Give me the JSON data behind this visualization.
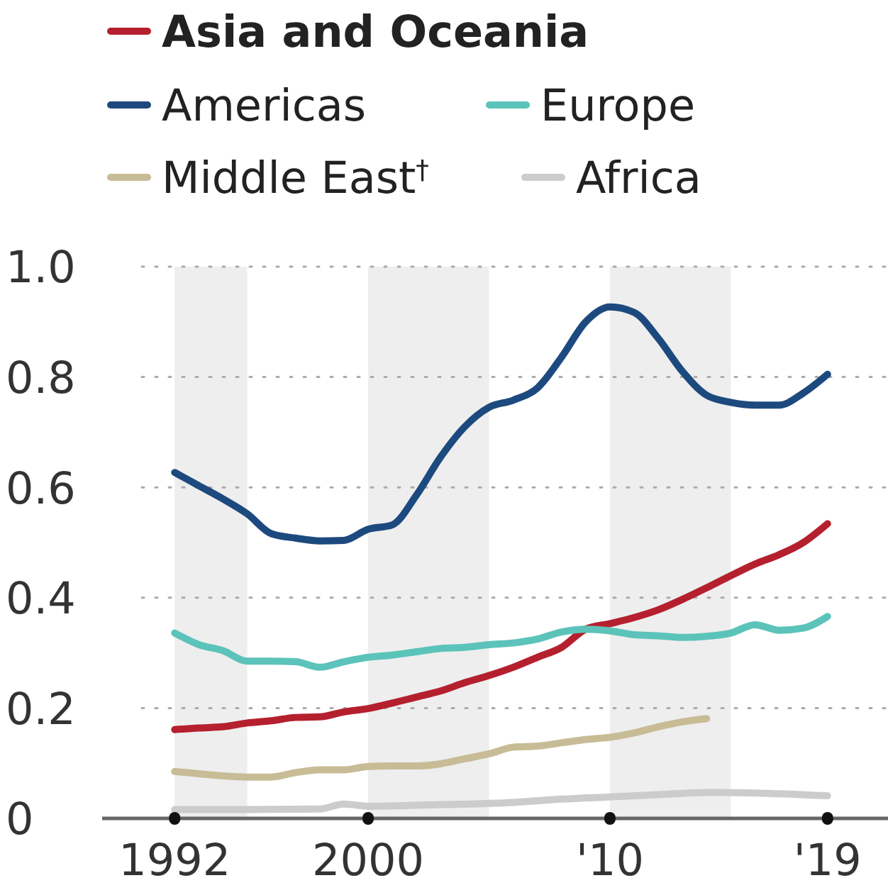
{
  "chart_data": {
    "type": "line",
    "legend": "top left",
    "grid": "y",
    "marker": "none",
    "line_style": "solid",
    "x": [
      1992,
      1993,
      1994,
      1995,
      1996,
      1997,
      1998,
      1999,
      2000,
      2001,
      2002,
      2003,
      2004,
      2005,
      2006,
      2007,
      2008,
      2009,
      2010,
      2011,
      2012,
      2013,
      2014,
      2015,
      2016,
      2017,
      2018,
      2019
    ],
    "series": [
      {
        "name": "Asia and Oceania",
        "color": "#b5202e",
        "values": [
          0.161,
          0.164,
          0.166,
          0.173,
          0.177,
          0.183,
          0.184,
          0.193,
          0.199,
          0.209,
          0.22,
          0.231,
          0.246,
          0.259,
          0.274,
          0.292,
          0.31,
          0.343,
          0.353,
          0.364,
          0.378,
          0.397,
          0.418,
          0.44,
          0.461,
          0.478,
          0.5,
          0.534
        ]
      },
      {
        "name": "Americas",
        "color": "#1d4a7e",
        "values": [
          0.627,
          0.603,
          0.579,
          0.552,
          0.516,
          0.508,
          0.503,
          0.504,
          0.524,
          0.532,
          0.586,
          0.655,
          0.71,
          0.745,
          0.758,
          0.78,
          0.836,
          0.9,
          0.927,
          0.917,
          0.87,
          0.81,
          0.767,
          0.754,
          0.749,
          0.749,
          0.771,
          0.805
        ]
      },
      {
        "name": "Europe",
        "color": "#5cc3ba",
        "values": [
          0.336,
          0.315,
          0.304,
          0.285,
          0.285,
          0.284,
          0.274,
          0.284,
          0.292,
          0.296,
          0.302,
          0.308,
          0.31,
          0.315,
          0.318,
          0.325,
          0.338,
          0.343,
          0.34,
          0.333,
          0.331,
          0.328,
          0.33,
          0.336,
          0.351,
          0.341,
          0.345,
          0.366
        ]
      },
      {
        "name": "Middle East$^{†}$",
        "color": "#c8bc96",
        "values": [
          0.085,
          0.081,
          0.077,
          0.075,
          0.075,
          0.083,
          0.088,
          0.088,
          0.094,
          0.095,
          0.095,
          0.099,
          0.108,
          0.117,
          0.129,
          0.131,
          0.137,
          0.143,
          0.147,
          0.155,
          0.166,
          0.175,
          0.181,
          null,
          null,
          null,
          null,
          null
        ]
      },
      {
        "name": "Africa",
        "color": "#cccccc",
        "x": [
          1992,
          1995,
          1998,
          1999,
          2000,
          2003,
          2006,
          2008,
          2010,
          2012,
          2014,
          2016,
          2019
        ],
        "values": [
          0.016,
          0.016,
          0.017,
          0.026,
          0.022,
          0.025,
          0.029,
          0.035,
          0.039,
          0.043,
          0.047,
          0.046,
          0.041
        ]
      }
    ],
    "xlim": [
      1989,
      2021.5
    ],
    "xticks": [
      1992,
      2000,
      {
        "value": 2010,
        "label": "'10"
      },
      {
        "value": 2019,
        "label": "'19"
      }
    ],
    "ylim": [
      0,
      1
    ],
    "yticks": [
      0,
      0.2,
      0.4,
      0.6,
      0.8,
      {
        "value": 1,
        "label": "1.0"
      }
    ],
    "bands": [
      {
        "axis": "x",
        "from": 1992,
        "to": 1995,
        "color": "#eeeeee"
      },
      {
        "axis": "x",
        "from": 2000,
        "to": 2005,
        "color": "#eeeeee"
      },
      {
        "axis": "x",
        "from": 2010,
        "to": 2015,
        "color": "#eeeeee"
      }
    ]
  }
}
